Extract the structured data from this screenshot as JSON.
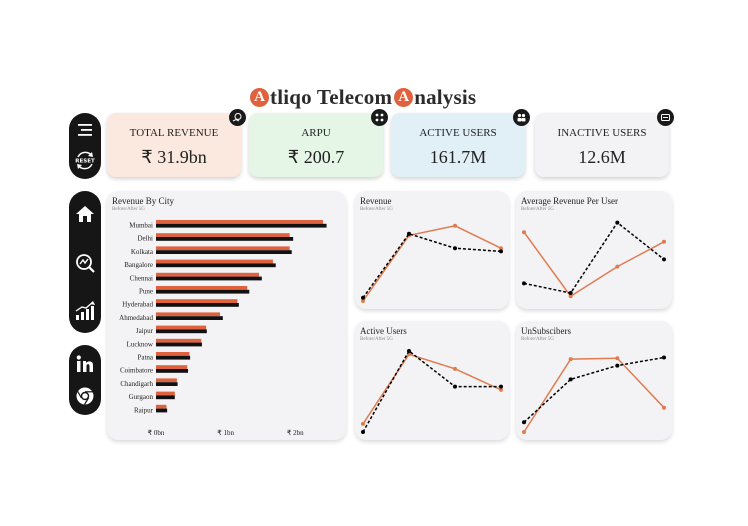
{
  "header": {
    "title_prefix": "tliqo Telecom ",
    "title_suffix": "nalysis",
    "logo_letter": "A"
  },
  "sidebar": {
    "menu_icon": "menu-icon",
    "reset_label": "RESET",
    "nav": [
      "home-icon",
      "analytics-icon",
      "growth-chart-icon"
    ],
    "social": [
      "linkedin-icon",
      "chrome-icon"
    ]
  },
  "kpis": [
    {
      "label": "TOTAL REVENUE",
      "value": "₹ 31.9bn",
      "bg": "#fbe9df",
      "icon": "revenue-icon"
    },
    {
      "label": "ARPU",
      "value": "₹ 200.7",
      "bg": "#e6f6e6",
      "icon": "users-group-icon"
    },
    {
      "label": "ACTIVE USERS",
      "value": "161.7M",
      "bg": "#e1eff6",
      "icon": "active-users-icon"
    },
    {
      "label": "INACTIVE USERS",
      "value": "12.6M",
      "bg": "#f3f3f5",
      "icon": "inactive-icon"
    }
  ],
  "colors": {
    "after": "#e07b4f",
    "before": "#000000",
    "bar_after": "#e0613d",
    "bar_before": "#111111"
  },
  "chart_data": [
    {
      "type": "bar",
      "title": "Revenue By City",
      "subtitle": "Before/After 5G",
      "categories": [
        "Mumbai",
        "Delhi",
        "Kolkata",
        "Bangalore",
        "Chennai",
        "Pune",
        "Hyderabad",
        "Ahmedabad",
        "Jaipur",
        "Lucknow",
        "Patna",
        "Coimbatore",
        "Chandigarh",
        "Gurgaon",
        "Raipur"
      ],
      "series": [
        {
          "values": [
            2.4,
            1.92,
            1.92,
            1.68,
            1.48,
            1.31,
            1.17,
            0.92,
            0.72,
            0.65,
            0.48,
            0.45,
            0.3,
            0.27,
            0.15
          ]
        },
        {
          "values": [
            2.45,
            1.97,
            1.95,
            1.72,
            1.52,
            1.34,
            1.19,
            0.96,
            0.73,
            0.66,
            0.49,
            0.46,
            0.31,
            0.27,
            0.16
          ]
        }
      ],
      "xticks": [
        "₹ 0bn",
        "₹ 1bn",
        "₹ 2bn"
      ],
      "xlim": [
        0,
        2.6
      ]
    },
    {
      "type": "line",
      "title": "Revenue",
      "subtitle": "Before/After 5G",
      "series": [
        {
          "values": [
            0.0,
            0.82,
            0.94,
            0.66
          ]
        },
        {
          "values": [
            0.04,
            0.84,
            0.66,
            0.62
          ]
        }
      ]
    },
    {
      "type": "line",
      "title": "Average Revenue Per User",
      "subtitle": "Before/After 5G",
      "series": [
        {
          "values": [
            0.86,
            0.06,
            0.43,
            0.74
          ]
        },
        {
          "values": [
            0.22,
            0.1,
            0.98,
            0.52
          ]
        }
      ]
    },
    {
      "type": "line",
      "title": "Active Users",
      "subtitle": "Before/After 5G",
      "series": [
        {
          "values": [
            0.1,
            0.96,
            0.78,
            0.52
          ]
        },
        {
          "values": [
            0.0,
            1.0,
            0.56,
            0.56
          ]
        }
      ]
    },
    {
      "type": "line",
      "title": "UnSubscibers",
      "subtitle": "Before/After 5G",
      "series": [
        {
          "values": [
            0.0,
            0.9,
            0.91,
            0.3
          ]
        },
        {
          "values": [
            0.12,
            0.65,
            0.82,
            0.92
          ]
        }
      ]
    }
  ]
}
